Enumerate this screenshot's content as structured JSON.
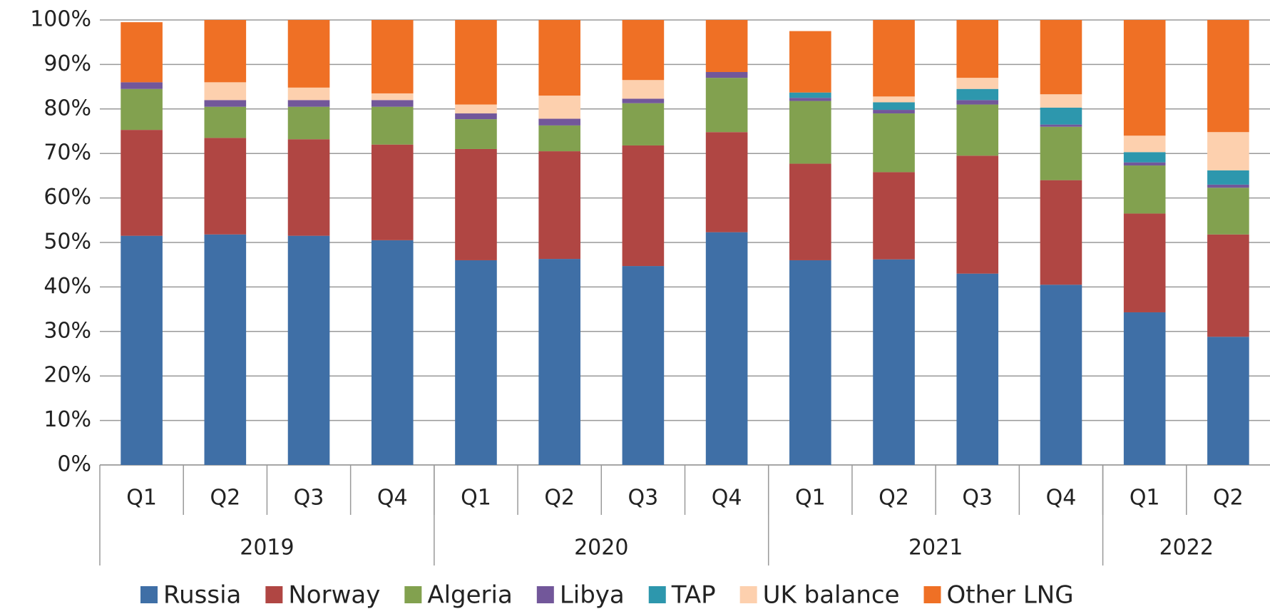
{
  "chart_data": {
    "type": "stacked_bar",
    "categories": [
      "Q1",
      "Q2",
      "Q3",
      "Q4",
      "Q1",
      "Q2",
      "Q3",
      "Q4",
      "Q1",
      "Q2",
      "Q3",
      "Q4",
      "Q1",
      "Q2"
    ],
    "groups": [
      {
        "name": "2019",
        "count": 4
      },
      {
        "name": "2020",
        "count": 4
      },
      {
        "name": "2021",
        "count": 4
      },
      {
        "name": "2022",
        "count": 2
      }
    ],
    "series": [
      {
        "name": "Russia",
        "color": "#3f6fa6",
        "values": [
          51.5,
          51.8,
          51.5,
          50.5,
          46,
          46.3,
          44.7,
          52.3,
          46,
          46.2,
          43,
          40.5,
          34.3,
          28.8
        ]
      },
      {
        "name": "Norway",
        "color": "#b04643",
        "values": [
          23.8,
          21.7,
          21.7,
          21.5,
          25,
          24.2,
          27.1,
          22.5,
          21.7,
          19.6,
          26.5,
          23.5,
          22.2,
          23
        ]
      },
      {
        "name": "Algeria",
        "color": "#82a14f",
        "values": [
          9.2,
          7,
          7.3,
          8.5,
          6.7,
          5.8,
          9.5,
          12.2,
          14.1,
          13.2,
          11.5,
          12,
          10.8,
          10.5
        ]
      },
      {
        "name": "Libya",
        "color": "#72579a",
        "values": [
          1.5,
          1.5,
          1.5,
          1.5,
          1.3,
          1.5,
          1,
          1.3,
          0.7,
          0.8,
          1,
          0.5,
          0.7,
          0.7
        ]
      },
      {
        "name": "TAP",
        "color": "#2d97ad",
        "values": [
          0,
          0,
          0,
          0,
          0,
          0,
          0,
          0,
          1.2,
          1.7,
          2.5,
          3.8,
          2.3,
          3.2
        ]
      },
      {
        "name": "UK balance",
        "color": "#fdd0ae",
        "values": [
          0,
          4,
          2.8,
          1.5,
          2,
          5.2,
          4.2,
          0,
          0,
          1.3,
          2.5,
          3,
          3.7,
          8.6
        ]
      },
      {
        "name": "Other LNG",
        "color": "#ef7025",
        "values": [
          13.5,
          14,
          15.2,
          16.5,
          19,
          17,
          13.5,
          11.7,
          13.8,
          17.2,
          13,
          16.7,
          26,
          25.2
        ]
      }
    ],
    "ylim": [
      0,
      100
    ],
    "yticks": [
      {
        "value": 0,
        "label": "0%"
      },
      {
        "value": 10,
        "label": "10%"
      },
      {
        "value": 20,
        "label": "20%"
      },
      {
        "value": 30,
        "label": "30%"
      },
      {
        "value": 40,
        "label": "40%"
      },
      {
        "value": 50,
        "label": "50%"
      },
      {
        "value": 60,
        "label": "60%"
      },
      {
        "value": 70,
        "label": "70%"
      },
      {
        "value": 80,
        "label": "80%"
      },
      {
        "value": 90,
        "label": "90%"
      },
      {
        "value": 100,
        "label": "100%"
      }
    ],
    "grid": true
  }
}
